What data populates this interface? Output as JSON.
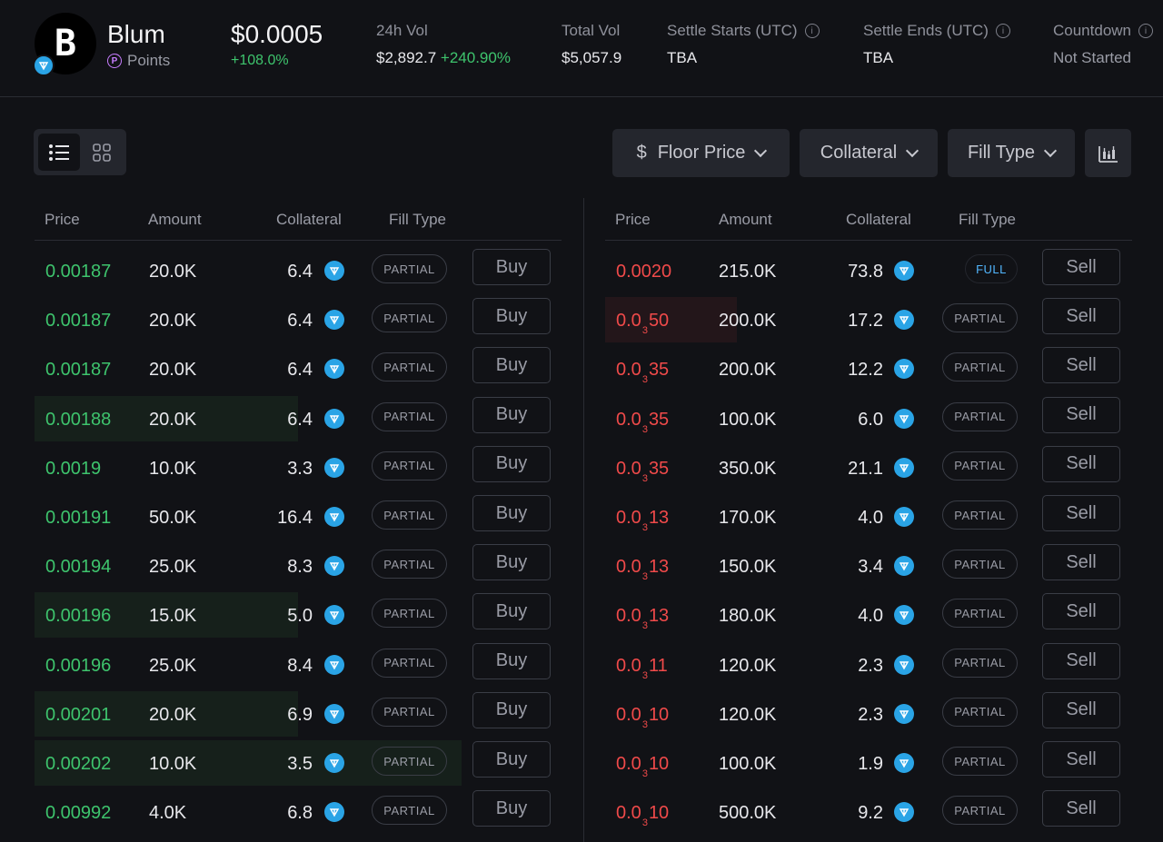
{
  "header": {
    "token_name": "Blum",
    "points_label": "Points",
    "price": "$0.0005",
    "price_change": "+108.0%",
    "vol24_label": "24h Vol",
    "vol24_value": "$2,892.7",
    "vol24_change": "+240.90%",
    "total_vol_label": "Total Vol",
    "total_vol_value": "$5,057.9",
    "settle_start_label": "Settle Starts (UTC)",
    "settle_start_value": "TBA",
    "settle_end_label": "Settle Ends (UTC)",
    "settle_end_value": "TBA",
    "countdown_label": "Countdown",
    "countdown_value": "Not Started"
  },
  "filters": {
    "floor_price": "Floor Price",
    "collateral": "Collateral",
    "fill_type": "Fill Type"
  },
  "columns": {
    "price": "Price",
    "amount": "Amount",
    "collateral": "Collateral",
    "fill_type": "Fill Type"
  },
  "buy_orders": [
    {
      "price": "0.00187",
      "amount": "20.0K",
      "collateral": "6.4",
      "fill": "PARTIAL",
      "action": "Buy"
    },
    {
      "price": "0.00187",
      "amount": "20.0K",
      "collateral": "6.4",
      "fill": "PARTIAL",
      "action": "Buy"
    },
    {
      "price": "0.00187",
      "amount": "20.0K",
      "collateral": "6.4",
      "fill": "PARTIAL",
      "action": "Buy"
    },
    {
      "price": "0.00188",
      "amount": "20.0K",
      "collateral": "6.4",
      "fill": "PARTIAL",
      "action": "Buy"
    },
    {
      "price": "0.0019",
      "amount": "10.0K",
      "collateral": "3.3",
      "fill": "PARTIAL",
      "action": "Buy"
    },
    {
      "price": "0.00191",
      "amount": "50.0K",
      "collateral": "16.4",
      "fill": "PARTIAL",
      "action": "Buy"
    },
    {
      "price": "0.00194",
      "amount": "25.0K",
      "collateral": "8.3",
      "fill": "PARTIAL",
      "action": "Buy"
    },
    {
      "price": "0.00196",
      "amount": "15.0K",
      "collateral": "5.0",
      "fill": "PARTIAL",
      "action": "Buy"
    },
    {
      "price": "0.00196",
      "amount": "25.0K",
      "collateral": "8.4",
      "fill": "PARTIAL",
      "action": "Buy"
    },
    {
      "price": "0.00201",
      "amount": "20.0K",
      "collateral": "6.9",
      "fill": "PARTIAL",
      "action": "Buy"
    },
    {
      "price": "0.00202",
      "amount": "10.0K",
      "collateral": "3.5",
      "fill": "PARTIAL",
      "action": "Buy"
    },
    {
      "price": "0.00992",
      "amount": "4.0K",
      "collateral": "6.8",
      "fill": "PARTIAL",
      "action": "Buy"
    }
  ],
  "sell_orders": [
    {
      "price_lead": "0.0020",
      "price_zeros": "",
      "price_tail": "",
      "amount": "215.0K",
      "collateral": "73.8",
      "fill": "FULL",
      "action": "Sell"
    },
    {
      "price_lead": "0.0",
      "price_zeros": "3",
      "price_tail": "50",
      "amount": "200.0K",
      "collateral": "17.2",
      "fill": "PARTIAL",
      "action": "Sell"
    },
    {
      "price_lead": "0.0",
      "price_zeros": "3",
      "price_tail": "35",
      "amount": "200.0K",
      "collateral": "12.2",
      "fill": "PARTIAL",
      "action": "Sell"
    },
    {
      "price_lead": "0.0",
      "price_zeros": "3",
      "price_tail": "35",
      "amount": "100.0K",
      "collateral": "6.0",
      "fill": "PARTIAL",
      "action": "Sell"
    },
    {
      "price_lead": "0.0",
      "price_zeros": "3",
      "price_tail": "35",
      "amount": "350.0K",
      "collateral": "21.1",
      "fill": "PARTIAL",
      "action": "Sell"
    },
    {
      "price_lead": "0.0",
      "price_zeros": "3",
      "price_tail": "13",
      "amount": "170.0K",
      "collateral": "4.0",
      "fill": "PARTIAL",
      "action": "Sell"
    },
    {
      "price_lead": "0.0",
      "price_zeros": "3",
      "price_tail": "13",
      "amount": "150.0K",
      "collateral": "3.4",
      "fill": "PARTIAL",
      "action": "Sell"
    },
    {
      "price_lead": "0.0",
      "price_zeros": "3",
      "price_tail": "13",
      "amount": "180.0K",
      "collateral": "4.0",
      "fill": "PARTIAL",
      "action": "Sell"
    },
    {
      "price_lead": "0.0",
      "price_zeros": "3",
      "price_tail": "11",
      "amount": "120.0K",
      "collateral": "2.3",
      "fill": "PARTIAL",
      "action": "Sell"
    },
    {
      "price_lead": "0.0",
      "price_zeros": "3",
      "price_tail": "10",
      "amount": "120.0K",
      "collateral": "2.3",
      "fill": "PARTIAL",
      "action": "Sell"
    },
    {
      "price_lead": "0.0",
      "price_zeros": "3",
      "price_tail": "10",
      "amount": "100.0K",
      "collateral": "1.9",
      "fill": "PARTIAL",
      "action": "Sell"
    },
    {
      "price_lead": "0.0",
      "price_zeros": "3",
      "price_tail": "10",
      "amount": "500.0K",
      "collateral": "9.2",
      "fill": "PARTIAL",
      "action": "Sell"
    }
  ],
  "colors": {
    "buy_green": "#3ec46d",
    "sell_red": "#f04a4a",
    "ton_blue": "#2aa4e6",
    "full_blue": "#52b7ff"
  },
  "icons": [
    "token-logo-icon",
    "ton-icon",
    "points-icon",
    "info-icon",
    "list-view-icon",
    "grid-view-icon",
    "dollar-icon",
    "chevron-down-icon",
    "depth-chart-icon"
  ]
}
